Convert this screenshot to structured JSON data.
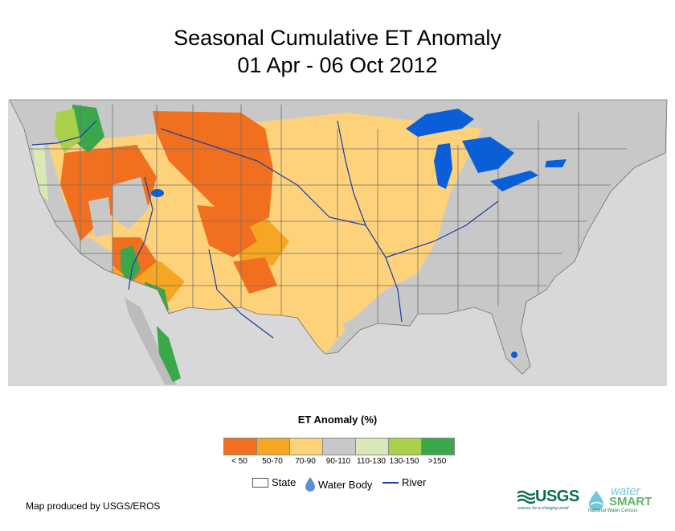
{
  "title": {
    "line1": "Seasonal Cumulative ET Anomaly",
    "line2": "01 Apr - 06 Oct 2012"
  },
  "legend": {
    "title": "ET Anomaly (%)",
    "bins": [
      {
        "label": "< 50",
        "color": "#f07020"
      },
      {
        "label": "50-70",
        "color": "#f5a623"
      },
      {
        "label": "70-90",
        "color": "#fdd27a"
      },
      {
        "label": "90-110",
        "color": "#c8c8c8"
      },
      {
        "label": "110-130",
        "color": "#d9e8b6"
      },
      {
        "label": "130-150",
        "color": "#a8d04a"
      },
      {
        "label": ">150",
        "color": "#3aa84a"
      }
    ],
    "state_label": "State",
    "water_label": "Water Body",
    "river_label": "River"
  },
  "colors": {
    "water": "#0a5fd8",
    "river": "#1a3aa8",
    "state_line": "#707070",
    "outside_land": "#d8d8d8"
  },
  "credit": "Map produced by USGS/EROS",
  "logos": {
    "usgs": "USGS",
    "usgs_tagline": "science for a changing world",
    "watersmart_1": "water",
    "watersmart_2": "SMART",
    "watersmart_sub": "National Water Census"
  }
}
